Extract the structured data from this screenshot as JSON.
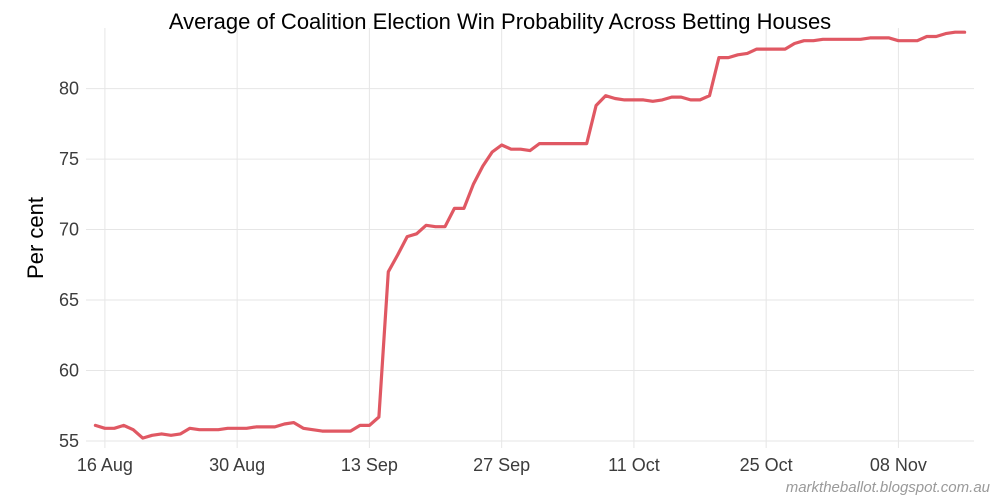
{
  "chart_data": {
    "type": "line",
    "title": "Average of Coalition Election Win Probability Across Betting Houses",
    "xlabel": "",
    "ylabel": "Per cent",
    "source": "marktheballot.blogspot.com.au",
    "x_type": "date",
    "xlim": [
      "2013-08-14",
      "2013-11-16"
    ],
    "ylim": [
      54.5,
      84.3
    ],
    "x_ticks": [
      {
        "date": "2013-08-16",
        "label": "16 Aug"
      },
      {
        "date": "2013-08-30",
        "label": "30 Aug"
      },
      {
        "date": "2013-09-13",
        "label": "13 Sep"
      },
      {
        "date": "2013-09-27",
        "label": "27 Sep"
      },
      {
        "date": "2013-10-11",
        "label": "11 Oct"
      },
      {
        "date": "2013-10-25",
        "label": "25 Oct"
      },
      {
        "date": "2013-11-08",
        "label": "08 Nov"
      }
    ],
    "y_ticks": [
      55,
      60,
      65,
      70,
      75,
      80
    ],
    "grid": true,
    "colors": {
      "line": "#e05863",
      "grid": "#e6e6e6",
      "tick_text": "#3c3c3c",
      "source_text": "#9a9a9a"
    },
    "series": [
      {
        "x": [
          "2013-08-15",
          "2013-08-16",
          "2013-08-17",
          "2013-08-18",
          "2013-08-19",
          "2013-08-20",
          "2013-08-21",
          "2013-08-22",
          "2013-08-23",
          "2013-08-24",
          "2013-08-25",
          "2013-08-26",
          "2013-08-27",
          "2013-08-28",
          "2013-08-29",
          "2013-08-30",
          "2013-08-31",
          "2013-09-01",
          "2013-09-02",
          "2013-09-03",
          "2013-09-04",
          "2013-09-05",
          "2013-09-06",
          "2013-09-07",
          "2013-09-08",
          "2013-09-09",
          "2013-09-10",
          "2013-09-11",
          "2013-09-12",
          "2013-09-13",
          "2013-09-14",
          "2013-09-15",
          "2013-09-16",
          "2013-09-17",
          "2013-09-18",
          "2013-09-19",
          "2013-09-20",
          "2013-09-21",
          "2013-09-22",
          "2013-09-23",
          "2013-09-24",
          "2013-09-25",
          "2013-09-26",
          "2013-09-27",
          "2013-09-28",
          "2013-09-29",
          "2013-09-30",
          "2013-10-01",
          "2013-10-02",
          "2013-10-03",
          "2013-10-04",
          "2013-10-05",
          "2013-10-06",
          "2013-10-07",
          "2013-10-08",
          "2013-10-09",
          "2013-10-10",
          "2013-10-11",
          "2013-10-12",
          "2013-10-13",
          "2013-10-14",
          "2013-10-15",
          "2013-10-16",
          "2013-10-17",
          "2013-10-18",
          "2013-10-19",
          "2013-10-20",
          "2013-10-21",
          "2013-10-22",
          "2013-10-23",
          "2013-10-24",
          "2013-10-25",
          "2013-10-26",
          "2013-10-27",
          "2013-10-28",
          "2013-10-29",
          "2013-10-30",
          "2013-10-31",
          "2013-11-01",
          "2013-11-02",
          "2013-11-03",
          "2013-11-04",
          "2013-11-05",
          "2013-11-06",
          "2013-11-07",
          "2013-11-08",
          "2013-11-09",
          "2013-11-10",
          "2013-11-11",
          "2013-11-12",
          "2013-11-13",
          "2013-11-14",
          "2013-11-15"
        ],
        "y": [
          56.1,
          55.9,
          55.9,
          56.1,
          55.8,
          55.2,
          55.4,
          55.5,
          55.4,
          55.5,
          55.9,
          55.8,
          55.8,
          55.8,
          55.9,
          55.9,
          55.9,
          56.0,
          56.0,
          56.0,
          56.2,
          56.3,
          55.9,
          55.8,
          55.7,
          55.7,
          55.7,
          55.7,
          56.1,
          56.1,
          56.7,
          67.0,
          68.2,
          69.5,
          69.7,
          70.3,
          70.2,
          70.2,
          71.5,
          71.5,
          73.2,
          74.5,
          75.5,
          76.0,
          75.7,
          75.7,
          75.6,
          76.1,
          76.1,
          76.1,
          76.1,
          76.1,
          76.1,
          78.8,
          79.5,
          79.3,
          79.2,
          79.2,
          79.2,
          79.1,
          79.2,
          79.4,
          79.4,
          79.2,
          79.2,
          79.5,
          82.2,
          82.2,
          82.4,
          82.5,
          82.8,
          82.8,
          82.8,
          82.8,
          83.2,
          83.4,
          83.4,
          83.5,
          83.5,
          83.5,
          83.5,
          83.5,
          83.6,
          83.6,
          83.6,
          83.4,
          83.4,
          83.4,
          83.7,
          83.7,
          83.9,
          84.0,
          84.0
        ]
      }
    ]
  }
}
